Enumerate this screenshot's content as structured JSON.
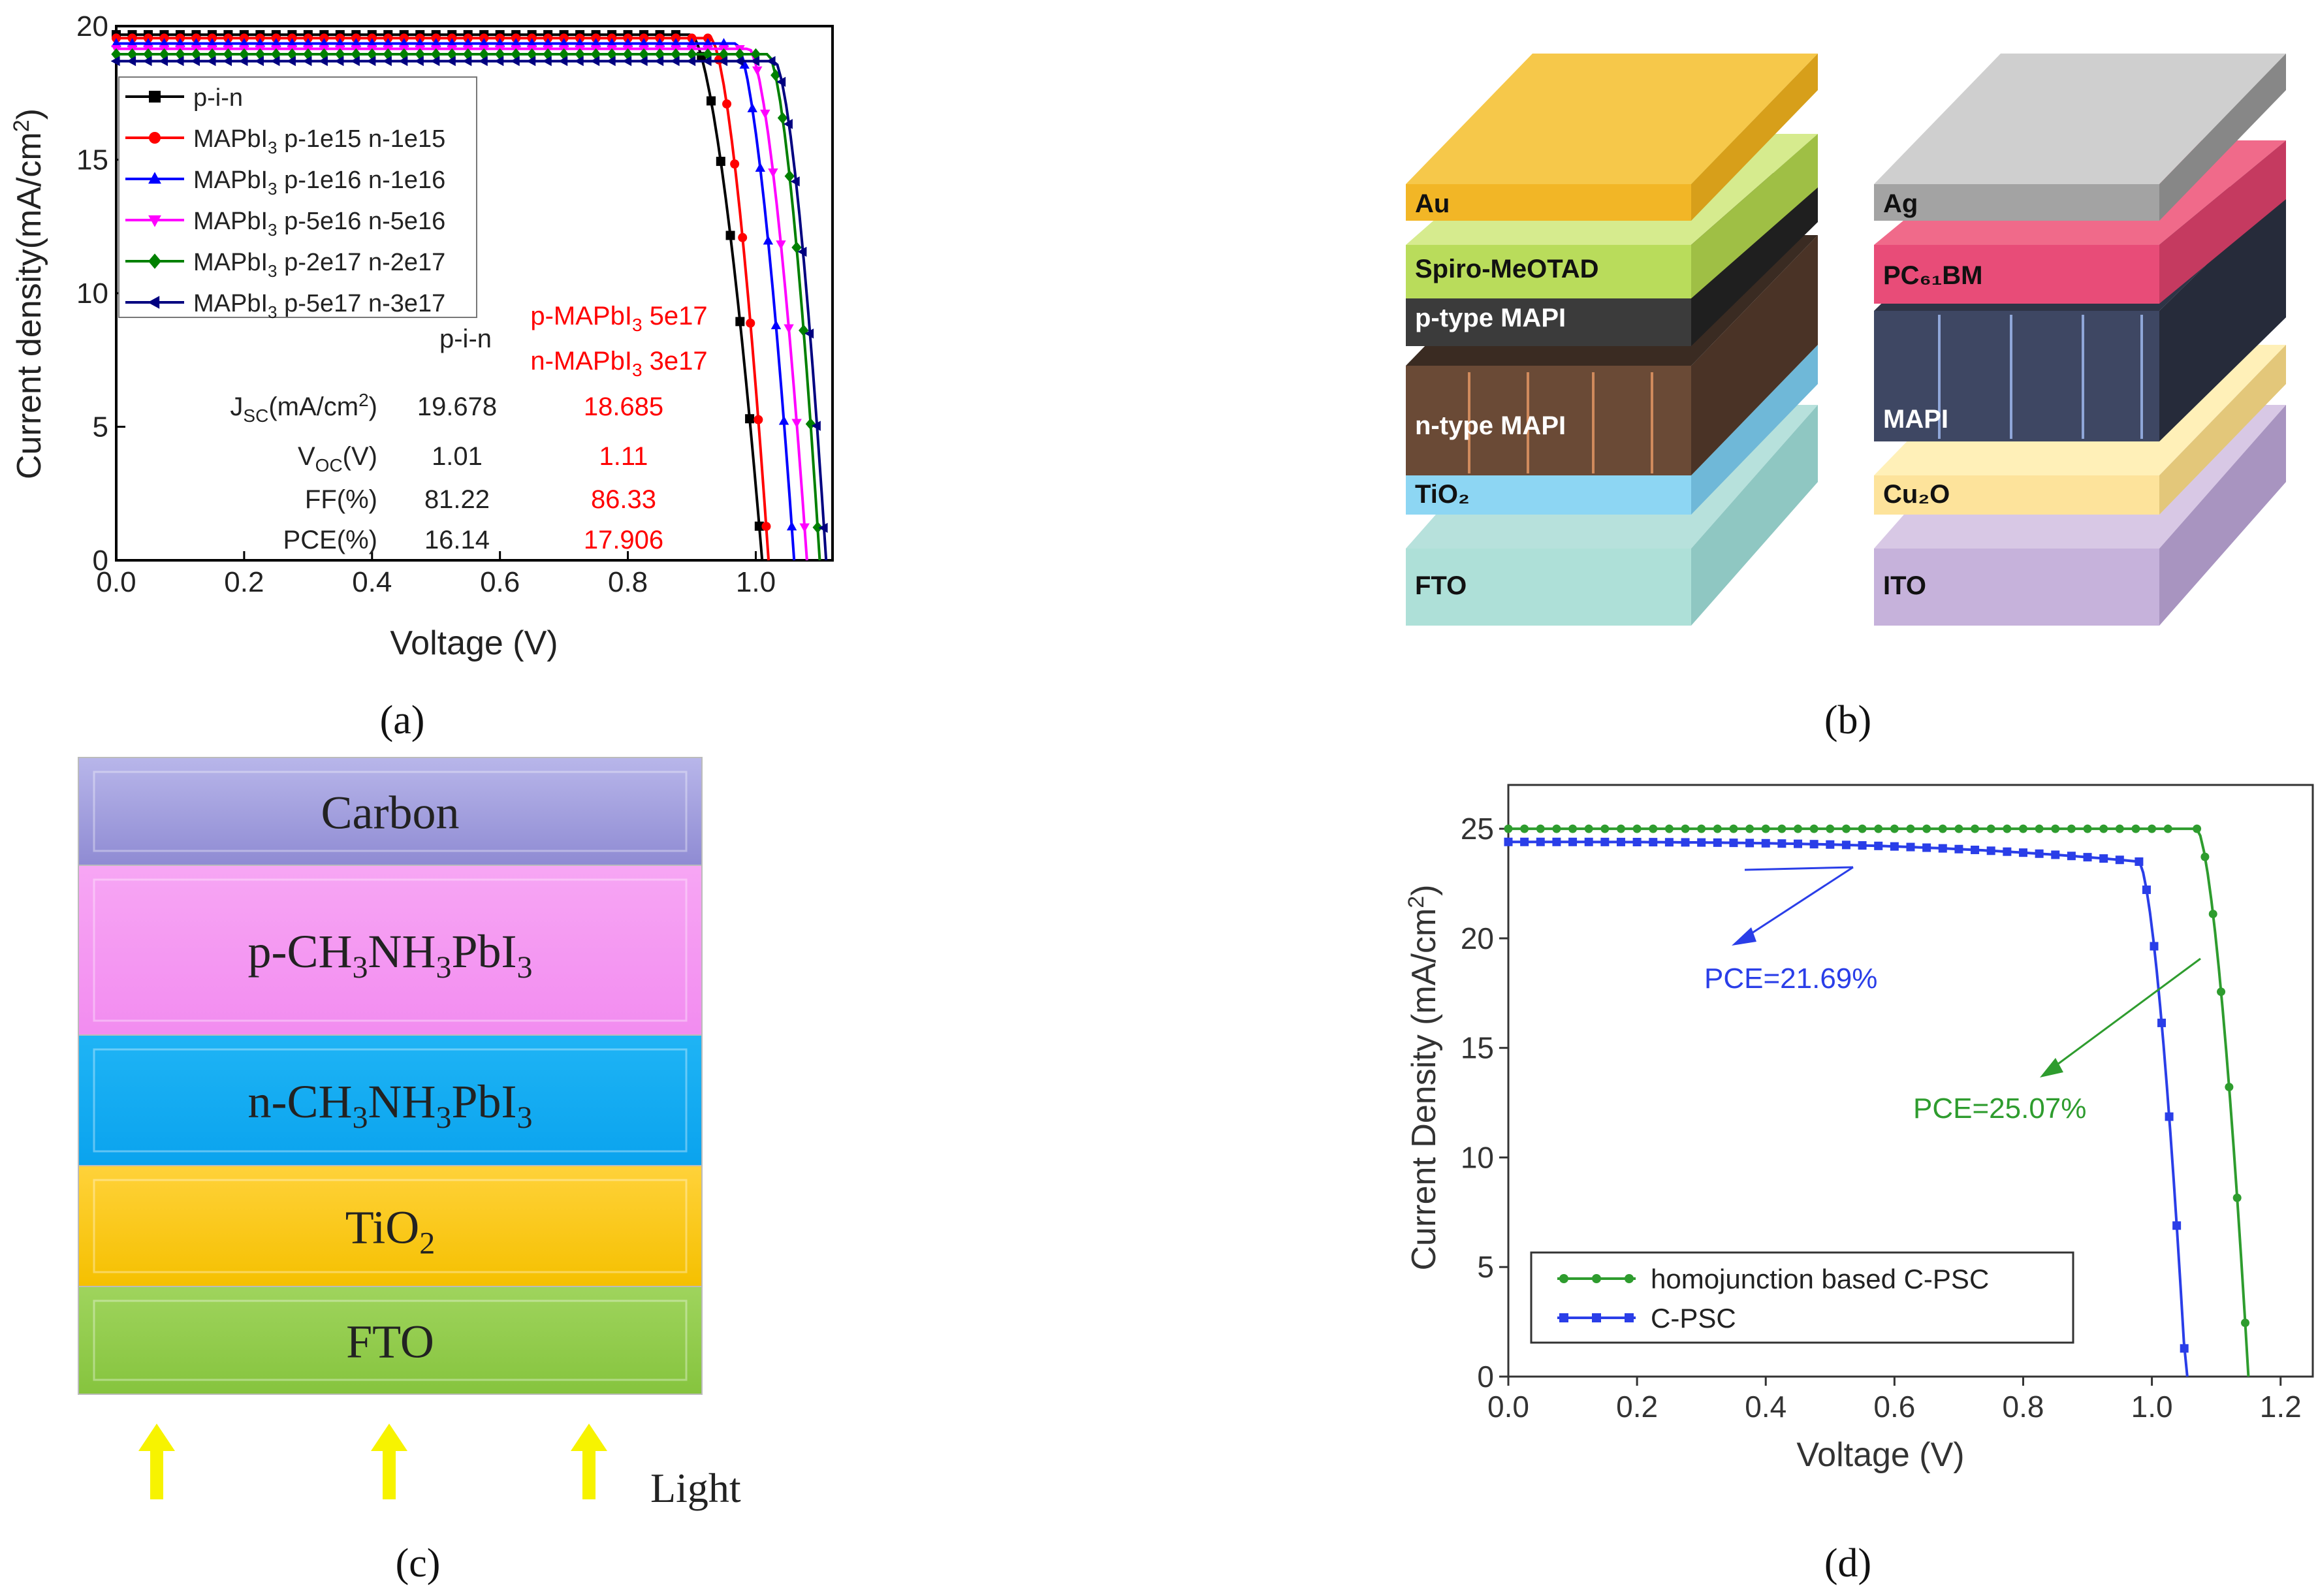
{
  "panels": {
    "a": "(a)",
    "b": "(b)",
    "c": "(c)",
    "d": "(d)"
  },
  "chart_data": [
    {
      "type": "line",
      "panel": "a",
      "xlabel": "Voltage (V)",
      "ylabel": "Current density(mA/cm²)",
      "xlim": [
        0.0,
        1.12
      ],
      "ylim": [
        0,
        20
      ],
      "xticks": [
        "0.0",
        "0.2",
        "0.4",
        "0.6",
        "0.8",
        "1.0"
      ],
      "yticks": [
        "0",
        "5",
        "10",
        "15",
        "20"
      ],
      "legend": "top-left",
      "series": [
        {
          "name": "p-i-n",
          "label_main": "p-i-n",
          "label_sub": "",
          "label_rest": "",
          "color": "#000000",
          "marker": "square",
          "jsc": 19.68,
          "voc": 1.01,
          "knee": 0.9,
          "curv": 7
        },
        {
          "name": "MAPbI3 p-1e15 n-1e15",
          "label_main": "MAPbI",
          "label_sub": "3",
          "label_rest": " p-1e15 n-1e15",
          "color": "#ff0000",
          "marker": "circle",
          "jsc": 19.55,
          "voc": 1.02,
          "knee": 0.93,
          "curv": 6
        },
        {
          "name": "MAPbI3 p-1e16 n-1e16",
          "label_main": "MAPbI",
          "label_sub": "3",
          "label_rest": " p-1e16 n-1e16",
          "color": "#0000ff",
          "marker": "triangle-up",
          "jsc": 19.35,
          "voc": 1.06,
          "knee": 0.97,
          "curv": 6
        },
        {
          "name": "MAPbI3 p-5e16 n-5e16",
          "label_main": "MAPbI",
          "label_sub": "3",
          "label_rest": " p-5e16 n-5e16",
          "color": "#ff00ff",
          "marker": "triangle-down",
          "jsc": 19.15,
          "voc": 1.08,
          "knee": 0.99,
          "curv": 6
        },
        {
          "name": "MAPbI3 p-2e17 n-2e17",
          "label_main": "MAPbI",
          "label_sub": "3",
          "label_rest": " p-2e17 n-2e17",
          "color": "#008000",
          "marker": "diamond",
          "jsc": 18.95,
          "voc": 1.1,
          "knee": 1.02,
          "curv": 6
        },
        {
          "name": "MAPbI3 p-5e17 n-3e17",
          "label_main": "MAPbI",
          "label_sub": "3",
          "label_rest": " p-5e17 n-3e17",
          "color": "#000080",
          "marker": "triangle-left",
          "jsc": 18.69,
          "voc": 1.11,
          "knee": 1.03,
          "curv": 6
        }
      ],
      "table": {
        "col1_header": "p-i-n",
        "col2_header_line1_main": "p-MAPbI",
        "col2_header_line1_sub": "3",
        "col2_header_line1_rest": " 5e17",
        "col2_header_line2_main": "n-MAPbI",
        "col2_header_line2_sub": "3",
        "col2_header_line2_rest": " 3e17",
        "rows": [
          {
            "label_main": "J",
            "label_sub": "SC",
            "label_rest": "(mA/cm",
            "label_sup": "2",
            "label_end": ")",
            "pin": "19.678",
            "mapbi": "18.685"
          },
          {
            "label_main": "V",
            "label_sub": "OC",
            "label_rest": "(V)",
            "label_sup": "",
            "label_end": "",
            "pin": "1.01",
            "mapbi": "1.11"
          },
          {
            "label_main": "FF(%)",
            "label_sub": "",
            "label_rest": "",
            "label_sup": "",
            "label_end": "",
            "pin": "81.22",
            "mapbi": "86.33"
          },
          {
            "label_main": "PCE(%)",
            "label_sub": "",
            "label_rest": "",
            "label_sup": "",
            "label_end": "",
            "pin": "16.14",
            "mapbi": "17.906"
          }
        ]
      }
    },
    {
      "type": "line",
      "panel": "d",
      "xlabel": "Voltage (V)",
      "ylabel": "Current Density (mA/cm²)",
      "xlim": [
        0.0,
        1.25
      ],
      "ylim": [
        0,
        27
      ],
      "xticks": [
        "0.0",
        "0.2",
        "0.4",
        "0.6",
        "0.8",
        "1.0",
        "1.2"
      ],
      "yticks": [
        "0",
        "5",
        "10",
        "15",
        "20",
        "25"
      ],
      "legend": "bottom-left",
      "series": [
        {
          "name": "homojunction based C-PSC",
          "color": "#2e9c2e",
          "marker": "circle",
          "jsc": 25.0,
          "voc": 1.15,
          "knee": 1.07,
          "curv": 7,
          "flat": 0.0
        },
        {
          "name": "C-PSC",
          "color": "#2a3ee8",
          "marker": "square",
          "jsc": 24.4,
          "voc": 1.055,
          "knee": 0.98,
          "curv": 5,
          "flat": 0.9
        }
      ],
      "annotations": [
        {
          "text": "PCE=21.69%",
          "color": "#2a3ee8"
        },
        {
          "text": "PCE=25.07%",
          "color": "#2e9c2e"
        }
      ]
    }
  ],
  "diagram_b": {
    "left_stack": [
      "Au",
      "Spiro-MeOTAD",
      "p-type MAPI",
      "n-type MAPI",
      "TiO₂",
      "FTO"
    ],
    "right_stack": [
      "Ag",
      "PC₆₁BM",
      "MAPI",
      "Cu₂O",
      "ITO"
    ]
  },
  "diagram_c": {
    "layers": [
      {
        "main": "Carbon",
        "sub1": "",
        "mid": "",
        "sub2": "",
        "tail": "",
        "sub3": ""
      },
      {
        "main": "p-CH",
        "sub1": "3",
        "mid": "NH",
        "sub2": "3",
        "tail": "PbI",
        "sub3": "3"
      },
      {
        "main": "n-CH",
        "sub1": "3",
        "mid": "NH",
        "sub2": "3",
        "tail": "PbI",
        "sub3": "3"
      },
      {
        "main": "TiO",
        "sub1": "2",
        "mid": "",
        "sub2": "",
        "tail": "",
        "sub3": ""
      },
      {
        "main": "FTO",
        "sub1": "",
        "mid": "",
        "sub2": "",
        "tail": "",
        "sub3": ""
      }
    ],
    "light_label": "Light"
  }
}
